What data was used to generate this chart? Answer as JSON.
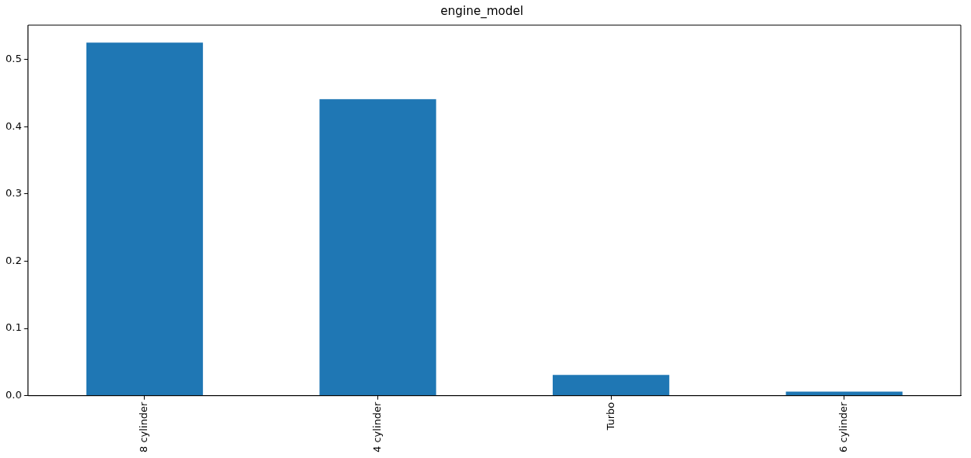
{
  "chart_data": {
    "type": "bar",
    "title": "engine_model",
    "categories": [
      "8 cylinder",
      "4 cylinder",
      "Turbo",
      "6 cylinder"
    ],
    "values": [
      0.525,
      0.441,
      0.031,
      0.006
    ],
    "color": "#1f77b4",
    "ylim": [
      0,
      0.551
    ],
    "yticks": [
      {
        "value": 0,
        "label": "0.0"
      },
      0.1,
      0.2,
      0.3,
      0.4,
      0.5
    ],
    "grid": false,
    "legend": false
  }
}
